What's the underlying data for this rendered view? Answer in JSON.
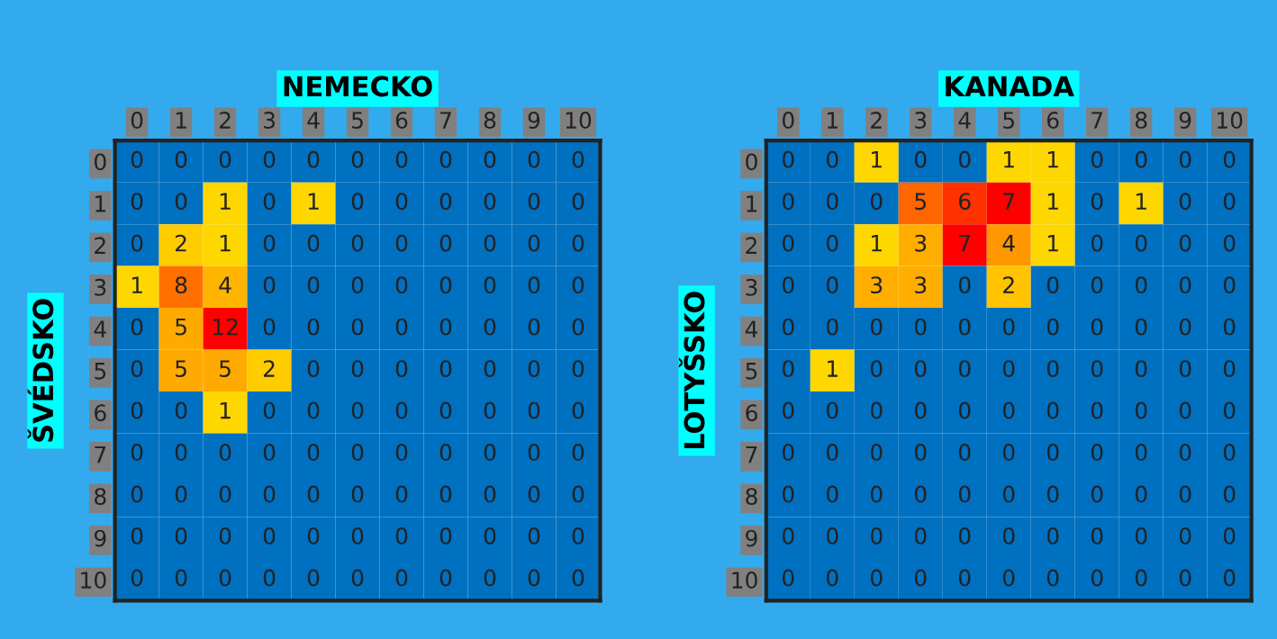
{
  "chart_data": [
    {
      "type": "heatmap",
      "xlabel": "NEMECKO",
      "ylabel": "ŠVÉDSKO",
      "data_labels": true,
      "categories": [
        "0",
        "1",
        "2",
        "3",
        "4",
        "5",
        "6",
        "7",
        "8",
        "9",
        "10"
      ],
      "y_categories": [
        "0",
        "1",
        "2",
        "3",
        "4",
        "5",
        "6",
        "7",
        "8",
        "9",
        "10"
      ],
      "cells": [
        [
          0,
          0,
          0,
          0,
          0,
          0,
          0,
          0,
          0,
          0,
          0
        ],
        [
          0,
          0,
          1,
          0,
          1,
          0,
          0,
          0,
          0,
          0,
          0
        ],
        [
          0,
          2,
          1,
          0,
          0,
          0,
          0,
          0,
          0,
          0,
          0
        ],
        [
          1,
          8,
          4,
          0,
          0,
          0,
          0,
          0,
          0,
          0,
          0
        ],
        [
          0,
          5,
          12,
          0,
          0,
          0,
          0,
          0,
          0,
          0,
          0
        ],
        [
          0,
          5,
          5,
          2,
          0,
          0,
          0,
          0,
          0,
          0,
          0
        ],
        [
          0,
          0,
          1,
          0,
          0,
          0,
          0,
          0,
          0,
          0,
          0
        ],
        [
          0,
          0,
          0,
          0,
          0,
          0,
          0,
          0,
          0,
          0,
          0
        ],
        [
          0,
          0,
          0,
          0,
          0,
          0,
          0,
          0,
          0,
          0,
          0
        ],
        [
          0,
          0,
          0,
          0,
          0,
          0,
          0,
          0,
          0,
          0,
          0
        ],
        [
          0,
          0,
          0,
          0,
          0,
          0,
          0,
          0,
          0,
          0,
          0
        ]
      ]
    },
    {
      "type": "heatmap",
      "xlabel": "KANADA",
      "ylabel": "LOTYŠSKO",
      "data_labels": true,
      "categories": [
        "0",
        "1",
        "2",
        "3",
        "4",
        "5",
        "6",
        "7",
        "8",
        "9",
        "10"
      ],
      "y_categories": [
        "0",
        "1",
        "2",
        "3",
        "4",
        "5",
        "6",
        "7",
        "8",
        "9",
        "10"
      ],
      "cells": [
        [
          0,
          0,
          1,
          0,
          0,
          1,
          1,
          0,
          0,
          0,
          0
        ],
        [
          0,
          0,
          0,
          5,
          6,
          7,
          1,
          0,
          1,
          0,
          0
        ],
        [
          0,
          0,
          1,
          3,
          7,
          4,
          1,
          0,
          0,
          0,
          0
        ],
        [
          0,
          0,
          3,
          3,
          0,
          2,
          0,
          0,
          0,
          0,
          0
        ],
        [
          0,
          0,
          0,
          0,
          0,
          0,
          0,
          0,
          0,
          0,
          0
        ],
        [
          0,
          1,
          0,
          0,
          0,
          0,
          0,
          0,
          0,
          0,
          0
        ],
        [
          0,
          0,
          0,
          0,
          0,
          0,
          0,
          0,
          0,
          0,
          0
        ],
        [
          0,
          0,
          0,
          0,
          0,
          0,
          0,
          0,
          0,
          0,
          0
        ],
        [
          0,
          0,
          0,
          0,
          0,
          0,
          0,
          0,
          0,
          0,
          0
        ],
        [
          0,
          0,
          0,
          0,
          0,
          0,
          0,
          0,
          0,
          0,
          0
        ],
        [
          0,
          0,
          0,
          0,
          0,
          0,
          0,
          0,
          0,
          0,
          0
        ]
      ]
    }
  ]
}
